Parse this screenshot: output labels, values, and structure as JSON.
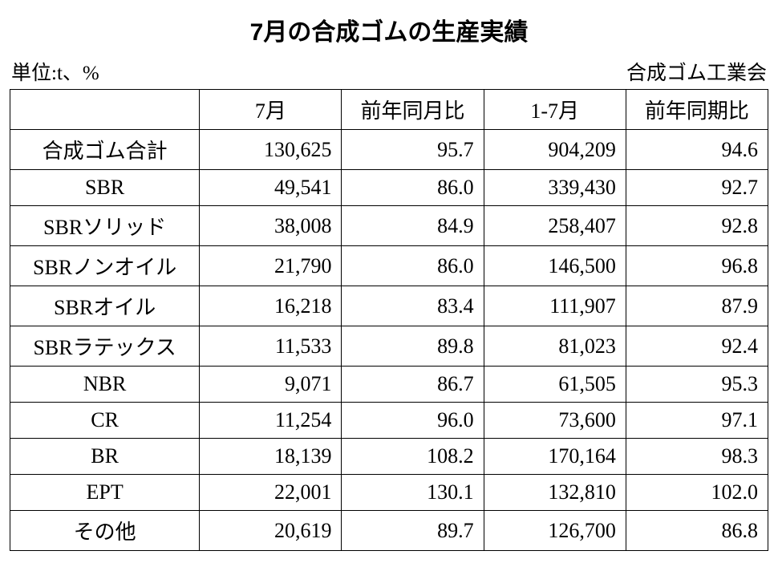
{
  "title": "7月の合成ゴムの生産実績",
  "unit_label": "単位:t、%",
  "source_label": "合成ゴム工業会",
  "table": {
    "columns": [
      "",
      "7月",
      "前年同月比",
      "1-7月",
      "前年同期比"
    ],
    "rows": [
      {
        "label": "合成ゴム合計",
        "c1": "130,625",
        "c2": "95.7",
        "c3": "904,209",
        "c4": "94.6"
      },
      {
        "label": "SBR",
        "c1": "49,541",
        "c2": "86.0",
        "c3": "339,430",
        "c4": "92.7"
      },
      {
        "label": "SBRソリッド",
        "c1": "38,008",
        "c2": "84.9",
        "c3": "258,407",
        "c4": "92.8"
      },
      {
        "label": "SBRノンオイル",
        "c1": "21,790",
        "c2": "86.0",
        "c3": "146,500",
        "c4": "96.8"
      },
      {
        "label": "SBRオイル",
        "c1": "16,218",
        "c2": "83.4",
        "c3": "111,907",
        "c4": "87.9"
      },
      {
        "label": "SBRラテックス",
        "c1": "11,533",
        "c2": "89.8",
        "c3": "81,023",
        "c4": "92.4"
      },
      {
        "label": "NBR",
        "c1": "9,071",
        "c2": "86.7",
        "c3": "61,505",
        "c4": "95.3"
      },
      {
        "label": "CR",
        "c1": "11,254",
        "c2": "96.0",
        "c3": "73,600",
        "c4": "97.1"
      },
      {
        "label": "BR",
        "c1": "18,139",
        "c2": "108.2",
        "c3": "170,164",
        "c4": "98.3"
      },
      {
        "label": "EPT",
        "c1": "22,001",
        "c2": "130.1",
        "c3": "132,810",
        "c4": "102.0"
      },
      {
        "label": "その他",
        "c1": "20,619",
        "c2": "89.7",
        "c3": "126,700",
        "c4": "86.8"
      }
    ],
    "border_color": "#000000",
    "background_color": "#ffffff",
    "text_color": "#000000",
    "title_fontsize": 30,
    "cell_fontsize": 26,
    "header_fontsize": 25
  }
}
